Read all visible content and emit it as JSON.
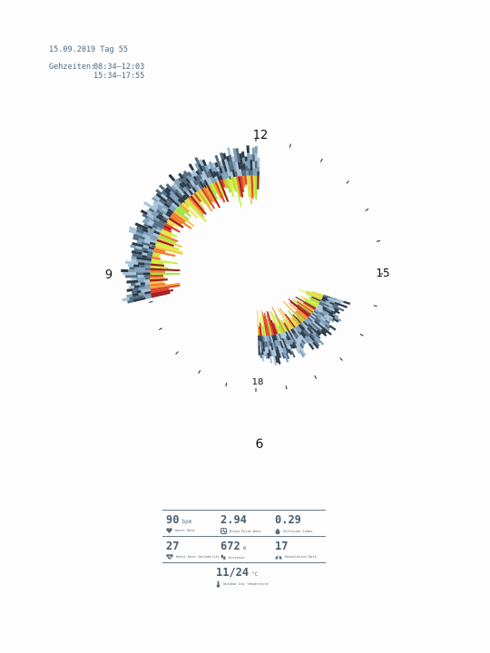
{
  "header": {
    "date_line": "15.09.2019 Tag 55",
    "hours_label": "Gehzeiten:",
    "hours_1": "08:34–12:03",
    "hours_2": "15:34–17:55"
  },
  "clock_labels": {
    "l12": "12",
    "l15": "15",
    "l9": "9",
    "l18": "18",
    "l6": "6"
  },
  "chart_data": {
    "type": "radial-spiral",
    "title": "",
    "segments": [
      {
        "from": "08:34",
        "to": "12:03"
      },
      {
        "from": "15:34",
        "to": "17:55"
      }
    ],
    "clock_labels": [
      "6",
      "9",
      "12",
      "15",
      "18"
    ],
    "ring_colors": [
      "#2b3a47",
      "#516b80",
      "#7fa0bb",
      "#a9c4d9"
    ],
    "value_colors": [
      "#a11a1a",
      "#e0402a",
      "#f07d2c",
      "#f5a23a",
      "#f2c94c",
      "#f3e24e",
      "#c8f03c",
      "#9be83c"
    ]
  },
  "stats": {
    "heart_rate": {
      "value": "90",
      "unit": "bpm",
      "label": "Heart Rate"
    },
    "blood_pulse": {
      "value": "2.94",
      "unit": "",
      "label": "Blood Pulse Wave"
    },
    "perfusion": {
      "value": "0.29",
      "unit": "",
      "label": "Perfusion Index"
    },
    "hrv": {
      "value": "27",
      "unit": "",
      "label": "Heart Rate Variability"
    },
    "distance": {
      "value": "672",
      "unit": "m",
      "label": "Distance"
    },
    "respiration": {
      "value": "17",
      "unit": "",
      "label": "Respiration Rate"
    },
    "temperature": {
      "value": "11/24",
      "unit": "°C",
      "label": "Outdoor Day Temperature"
    }
  }
}
